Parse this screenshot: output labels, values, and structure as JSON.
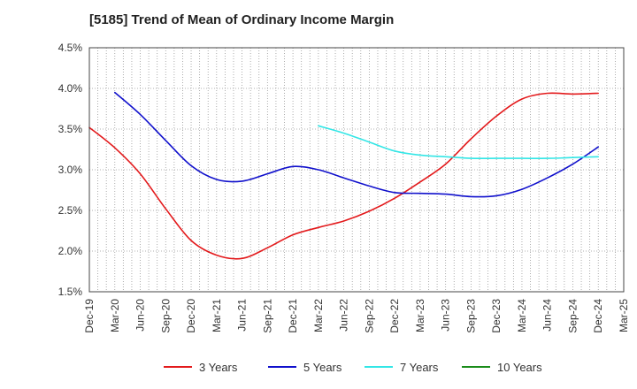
{
  "chart_data": {
    "type": "line",
    "title": "[5185]  Trend of Mean of Ordinary Income Margin",
    "y_unit": "%",
    "ylim": [
      1.5,
      4.5
    ],
    "y_ticks": [
      "1.5%",
      "2.0%",
      "2.5%",
      "3.0%",
      "3.5%",
      "4.0%",
      "4.5%"
    ],
    "y_tick_values": [
      1.5,
      2.0,
      2.5,
      3.0,
      3.5,
      4.0,
      4.5
    ],
    "x_ticks": [
      "Dec-19",
      "Mar-20",
      "Jun-20",
      "Sep-20",
      "Dec-20",
      "Mar-21",
      "Jun-21",
      "Sep-21",
      "Dec-21",
      "Mar-22",
      "Jun-22",
      "Sep-22",
      "Dec-22",
      "Mar-23",
      "Jun-23",
      "Sep-23",
      "Dec-23",
      "Mar-24",
      "Jun-24",
      "Sep-24",
      "Dec-24",
      "Mar-25"
    ],
    "grid": true,
    "legend_position": "bottom",
    "series": [
      {
        "name": "3 Years",
        "color": "#e31a1c",
        "values": [
          3.52,
          3.27,
          2.95,
          2.52,
          2.13,
          1.95,
          1.91,
          2.04,
          2.2,
          2.29,
          2.37,
          2.49,
          2.65,
          2.85,
          3.07,
          3.38,
          3.66,
          3.87,
          3.94,
          3.93,
          3.94,
          null
        ]
      },
      {
        "name": "5 Years",
        "color": "#1010cc",
        "values": [
          null,
          3.95,
          3.68,
          3.36,
          3.05,
          2.88,
          2.86,
          2.95,
          3.04,
          3.0,
          2.9,
          2.8,
          2.72,
          2.71,
          2.7,
          2.67,
          2.68,
          2.76,
          2.9,
          3.07,
          3.28,
          null
        ]
      },
      {
        "name": "7 Years",
        "color": "#33e6e6",
        "values": [
          null,
          null,
          null,
          null,
          null,
          null,
          null,
          null,
          null,
          3.54,
          3.45,
          3.34,
          3.23,
          3.18,
          3.16,
          3.14,
          3.14,
          3.14,
          3.14,
          3.15,
          3.16,
          null
        ]
      },
      {
        "name": "10 Years",
        "color": "#1a8c1a",
        "values": [
          null,
          null,
          null,
          null,
          null,
          null,
          null,
          null,
          null,
          null,
          null,
          null,
          null,
          null,
          null,
          null,
          null,
          null,
          null,
          null,
          null,
          null
        ]
      }
    ]
  }
}
